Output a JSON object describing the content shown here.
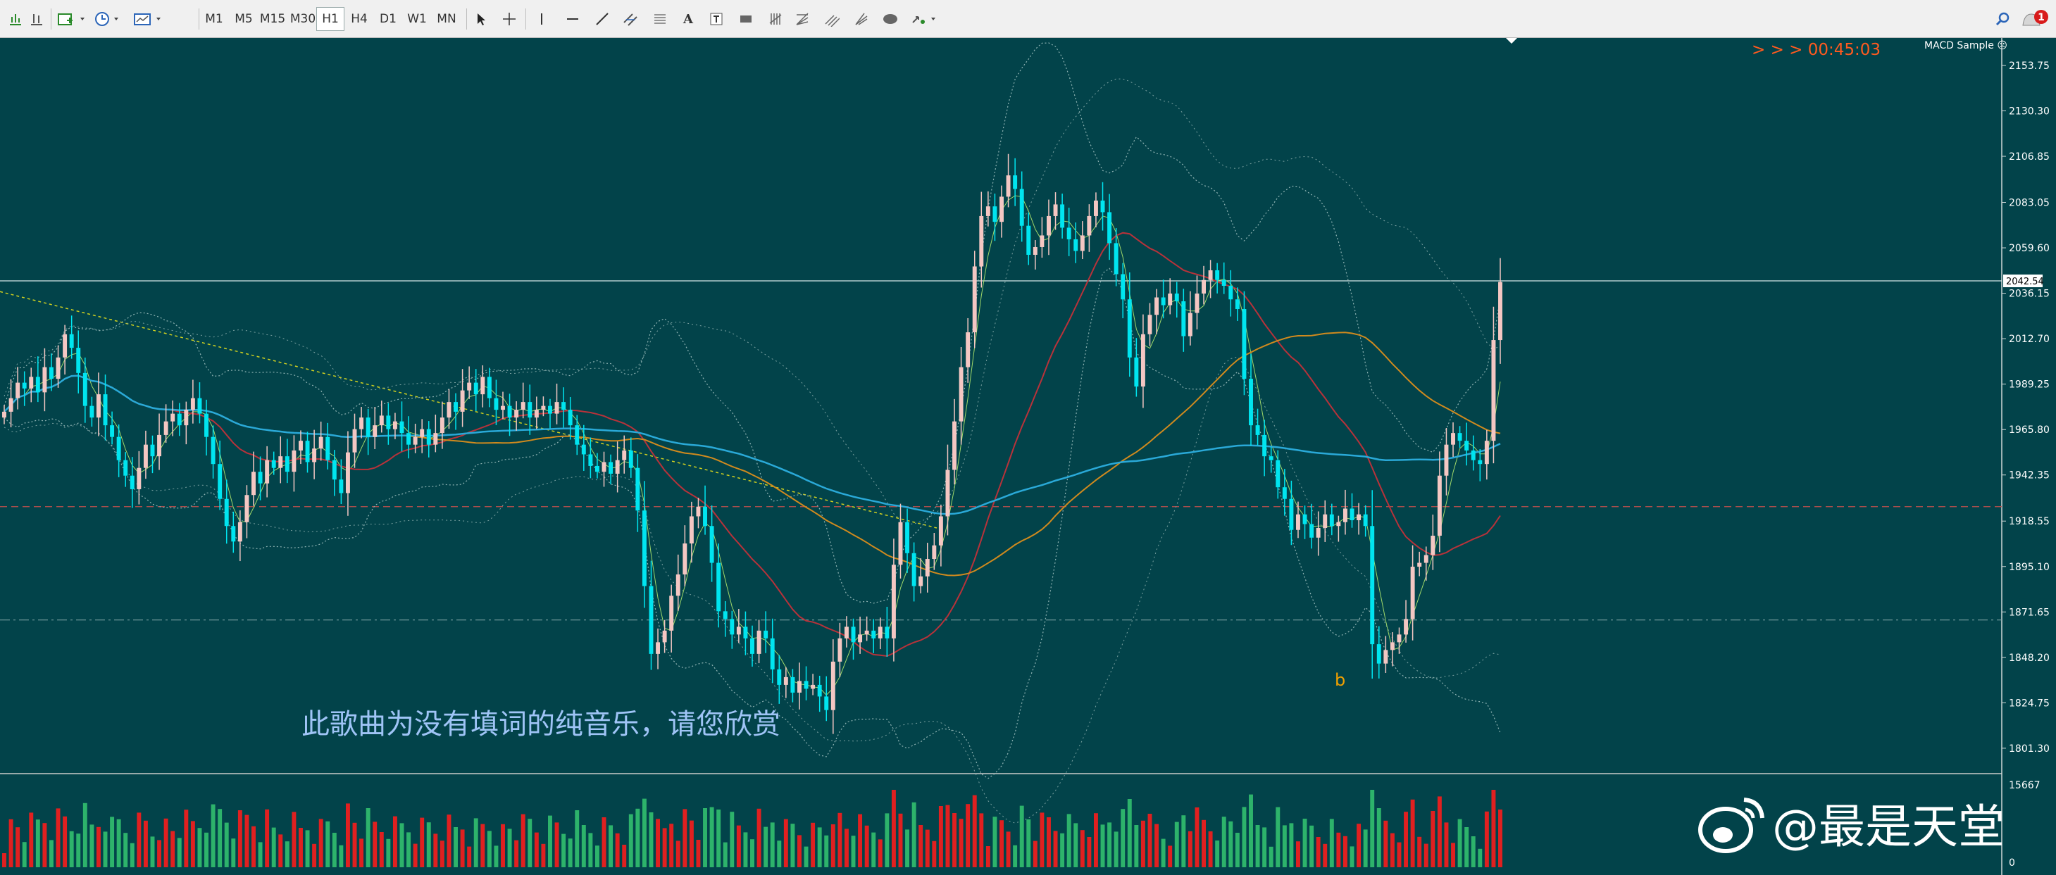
{
  "toolbar": {
    "timeframes": [
      "M1",
      "M5",
      "M15",
      "M30",
      "H1",
      "H4",
      "D1",
      "W1",
      "MN"
    ],
    "active_timeframe": "H1",
    "notification_count": "1"
  },
  "chart": {
    "indicator_label": "MACD Sample ☹",
    "countdown": "> > >  00:45:03",
    "current_price_label": "2042.54",
    "price_ticks": [
      "2153.75",
      "2130.30",
      "2106.85",
      "2083.05",
      "2059.60",
      "2036.15",
      "2012.70",
      "1989.25",
      "1965.80",
      "1942.35",
      "1918.55",
      "1895.10",
      "1871.65",
      "1848.20",
      "1824.75",
      "1801.30"
    ],
    "volume_ticks": [
      "15667",
      "0"
    ],
    "wave_label": "b",
    "subtitle": "此歌曲为没有填词的纯音乐，请您欣赏",
    "watermark": "@最是天堂",
    "colors": {
      "background": "#02434a",
      "bull_candle": "#f4c7c3",
      "bear_candle": "#00e5f0",
      "volume_up": "#e02020",
      "volume_down": "#2db36b",
      "countdown": "#ff5a1f",
      "wave_label": "#f0a000"
    }
  },
  "chart_data": {
    "type": "candlestick",
    "price_range": [
      1790,
      2165
    ],
    "current_price": 2042.54,
    "horizontal_levels": [
      2042.54,
      1926.0,
      1867.5
    ],
    "closes": [
      1975,
      1982,
      1990,
      1987,
      1993,
      1985,
      1998,
      1992,
      2003,
      2015,
      2008,
      1995,
      1978,
      1972,
      1984,
      1968,
      1962,
      1950,
      1942,
      1935,
      1946,
      1958,
      1952,
      1963,
      1970,
      1974,
      1968,
      1976,
      1982,
      1974,
      1962,
      1948,
      1930,
      1916,
      1908,
      1918,
      1932,
      1944,
      1938,
      1950,
      1946,
      1952,
      1944,
      1955,
      1960,
      1949,
      1956,
      1962,
      1950,
      1940,
      1933,
      1954,
      1966,
      1972,
      1962,
      1968,
      1973,
      1966,
      1970,
      1964,
      1958,
      1962,
      1966,
      1958,
      1964,
      1972,
      1980,
      1975,
      1986,
      1990,
      1984,
      1993,
      1982,
      1976,
      1978,
      1972,
      1976,
      1980,
      1972,
      1976,
      1978,
      1974,
      1980,
      1976,
      1968,
      1958,
      1953,
      1947,
      1944,
      1949,
      1943,
      1950,
      1955,
      1946,
      1924,
      1885,
      1850,
      1856,
      1862,
      1880,
      1891,
      1907,
      1921,
      1926,
      1916,
      1897,
      1872,
      1868,
      1860,
      1864,
      1858,
      1850,
      1862,
      1858,
      1842,
      1834,
      1838,
      1830,
      1836,
      1832,
      1834,
      1828,
      1821,
      1846,
      1858,
      1864,
      1856,
      1860,
      1862,
      1858,
      1864,
      1858,
      1896,
      1918,
      1902,
      1885,
      1890,
      1899,
      1906,
      1921,
      1945,
      1970,
      1998,
      2016,
      2050,
      2076,
      2081,
      2073,
      2086,
      2097,
      2090,
      2071,
      2056,
      2060,
      2066,
      2076,
      2082,
      2070,
      2064,
      2058,
      2066,
      2076,
      2084,
      2078,
      2062,
      2046,
      2033,
      2003,
      1988,
      2015,
      2025,
      2034,
      2030,
      2036,
      2032,
      2014,
      2026,
      2036,
      2043,
      2048,
      2043,
      2040,
      2033,
      2028,
      1992,
      1968,
      1963,
      1952,
      1950,
      1936,
      1930,
      1914,
      1922,
      1917,
      1910,
      1915,
      1922,
      1916,
      1918,
      1925,
      1919,
      1922,
      1916,
      1855,
      1845,
      1852,
      1856,
      1860,
      1868,
      1895,
      1897,
      1901,
      1911,
      1942,
      1958,
      1964,
      1960,
      1955,
      1950,
      1948,
      1960,
      2012,
      2042
    ]
  }
}
